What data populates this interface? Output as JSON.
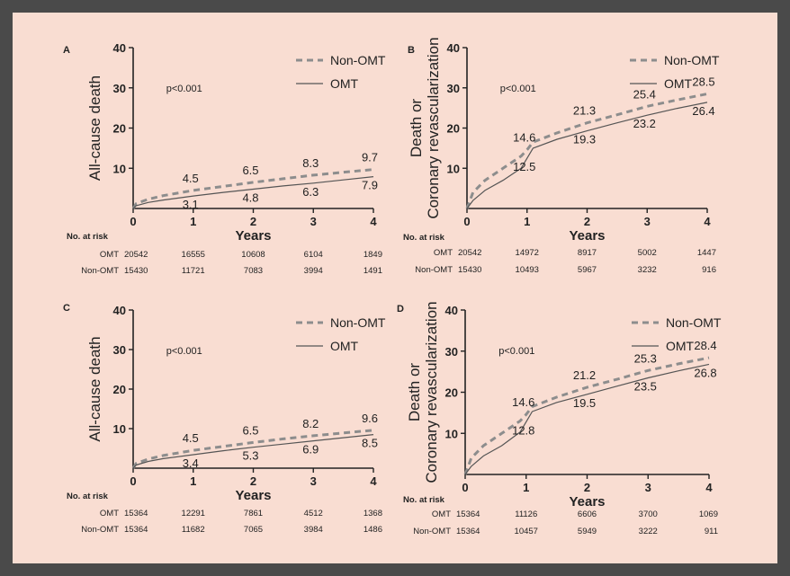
{
  "chart_data": [
    {
      "type": "line",
      "panel": "A",
      "ylabel_lines": [
        "All-cause death"
      ],
      "xlabel": "Years",
      "xlim": [
        0,
        4
      ],
      "ylim": [
        0,
        40
      ],
      "xticks": [
        "0",
        "1",
        "2",
        "3",
        "4"
      ],
      "yticks": [
        "10",
        "20",
        "30",
        "40"
      ],
      "p_value": "p<0.001",
      "legend": {
        "placement": "top-right",
        "entries": [
          "Non-OMT",
          "OMT"
        ]
      },
      "series": [
        {
          "name": "Non-OMT",
          "style": "dashed",
          "x": [
            0,
            0.05,
            0.25,
            0.5,
            1,
            1.5,
            2,
            2.5,
            3,
            3.5,
            4
          ],
          "y": [
            0,
            1.2,
            2.3,
            3.2,
            4.5,
            5.5,
            6.5,
            7.4,
            8.3,
            9.0,
            9.7
          ],
          "labels": [
            {
              "x": 1,
              "text": "4.5"
            },
            {
              "x": 2,
              "text": "6.5"
            },
            {
              "x": 3,
              "text": "8.3"
            },
            {
              "x": 4,
              "text": "9.7"
            }
          ]
        },
        {
          "name": "OMT",
          "style": "solid",
          "x": [
            0,
            0.05,
            0.25,
            0.5,
            1,
            1.5,
            2,
            2.5,
            3,
            3.5,
            4
          ],
          "y": [
            0,
            0.7,
            1.5,
            2.1,
            3.1,
            4.0,
            4.8,
            5.6,
            6.3,
            7.1,
            7.9
          ],
          "labels": [
            {
              "x": 1,
              "text": "3.1"
            },
            {
              "x": 2,
              "text": "4.8"
            },
            {
              "x": 3,
              "text": "6.3"
            },
            {
              "x": 4,
              "text": "7.9"
            }
          ]
        }
      ],
      "risk_table": {
        "title": "No. at risk",
        "rows": [
          {
            "label": "OMT",
            "values": [
              "20542",
              "16555",
              "10608",
              "6104",
              "1849"
            ]
          },
          {
            "label": "Non-OMT",
            "values": [
              "15430",
              "11721",
              "7083",
              "3994",
              "1491"
            ]
          }
        ]
      }
    },
    {
      "type": "line",
      "panel": "B",
      "ylabel_lines": [
        "Death or",
        "Coronary revascularization"
      ],
      "xlabel": "Years",
      "xlim": [
        0,
        4
      ],
      "ylim": [
        0,
        40
      ],
      "xticks": [
        "0",
        "1",
        "2",
        "3",
        "4"
      ],
      "yticks": [
        "10",
        "20",
        "30",
        "40"
      ],
      "p_value": "p<0.001",
      "legend": {
        "placement": "top-right",
        "entries": [
          "Non-OMT",
          "OMT"
        ]
      },
      "series": [
        {
          "name": "Non-OMT",
          "style": "dashed",
          "x": [
            0,
            0.1,
            0.3,
            0.6,
            0.9,
            1,
            1.1,
            1.5,
            2,
            2.5,
            3,
            3.5,
            4
          ],
          "y": [
            0,
            4,
            7,
            10,
            13,
            14.6,
            16.5,
            18.8,
            21.3,
            23.3,
            25.4,
            27.0,
            28.5
          ],
          "labels": [
            {
              "x": 1,
              "text": "14.6"
            },
            {
              "x": 2,
              "text": "21.3"
            },
            {
              "x": 3,
              "text": "25.4"
            },
            {
              "x": 4,
              "text": "28.5"
            }
          ]
        },
        {
          "name": "OMT",
          "style": "solid",
          "x": [
            0,
            0.1,
            0.3,
            0.6,
            0.9,
            1,
            1.1,
            1.5,
            2,
            2.5,
            3,
            3.5,
            4
          ],
          "y": [
            0,
            2,
            4.5,
            7,
            10,
            12.5,
            15,
            17.2,
            19.3,
            21.3,
            23.2,
            24.9,
            26.4
          ],
          "labels": [
            {
              "x": 1,
              "text": "12.5"
            },
            {
              "x": 2,
              "text": "19.3"
            },
            {
              "x": 3,
              "text": "23.2"
            },
            {
              "x": 4,
              "text": "26.4"
            }
          ]
        }
      ],
      "risk_table": {
        "title": "No. at risk",
        "rows": [
          {
            "label": "OMT",
            "values": [
              "20542",
              "14972",
              "8917",
              "5002",
              "1447"
            ]
          },
          {
            "label": "Non-OMT",
            "values": [
              "15430",
              "10493",
              "5967",
              "3232",
              "916"
            ]
          }
        ]
      }
    },
    {
      "type": "line",
      "panel": "C",
      "ylabel_lines": [
        "All-cause death"
      ],
      "xlabel": "Years",
      "xlim": [
        0,
        4
      ],
      "ylim": [
        0,
        40
      ],
      "xticks": [
        "0",
        "1",
        "2",
        "3",
        "4"
      ],
      "yticks": [
        "10",
        "20",
        "30",
        "40"
      ],
      "p_value": "p<0.001",
      "legend": {
        "placement": "top-right",
        "entries": [
          "Non-OMT",
          "OMT"
        ]
      },
      "series": [
        {
          "name": "Non-OMT",
          "style": "dashed",
          "x": [
            0,
            0.05,
            0.25,
            0.5,
            1,
            1.5,
            2,
            2.5,
            3,
            3.5,
            4
          ],
          "y": [
            0,
            1.2,
            2.3,
            3.2,
            4.5,
            5.5,
            6.5,
            7.4,
            8.2,
            8.9,
            9.6
          ],
          "labels": [
            {
              "x": 1,
              "text": "4.5"
            },
            {
              "x": 2,
              "text": "6.5"
            },
            {
              "x": 3,
              "text": "8.2"
            },
            {
              "x": 4,
              "text": "9.6"
            }
          ]
        },
        {
          "name": "OMT",
          "style": "solid",
          "x": [
            0,
            0.05,
            0.25,
            0.5,
            1,
            1.5,
            2,
            2.5,
            3,
            3.5,
            4
          ],
          "y": [
            0,
            0.8,
            1.7,
            2.4,
            3.4,
            4.4,
            5.3,
            6.1,
            6.9,
            7.7,
            8.5
          ],
          "labels": [
            {
              "x": 1,
              "text": "3.4"
            },
            {
              "x": 2,
              "text": "5.3"
            },
            {
              "x": 3,
              "text": "6.9"
            },
            {
              "x": 4,
              "text": "8.5"
            }
          ]
        }
      ],
      "risk_table": {
        "title": "No. at risk",
        "rows": [
          {
            "label": "OMT",
            "values": [
              "15364",
              "12291",
              "7861",
              "4512",
              "1368"
            ]
          },
          {
            "label": "Non-OMT",
            "values": [
              "15364",
              "11682",
              "7065",
              "3984",
              "1486"
            ]
          }
        ]
      }
    },
    {
      "type": "line",
      "panel": "D",
      "ylabel_lines": [
        "Death or",
        "Coronary revascularization"
      ],
      "xlabel": "Years",
      "xlim": [
        0,
        4
      ],
      "ylim": [
        0,
        40
      ],
      "xticks": [
        "0",
        "1",
        "2",
        "3",
        "4"
      ],
      "yticks": [
        "10",
        "20",
        "30",
        "40"
      ],
      "p_value": "p<0.001",
      "legend": {
        "placement": "top-right",
        "entries": [
          "Non-OMT",
          "OMT"
        ]
      },
      "series": [
        {
          "name": "Non-OMT",
          "style": "dashed",
          "x": [
            0,
            0.1,
            0.3,
            0.6,
            0.9,
            1,
            1.1,
            1.5,
            2,
            2.5,
            3,
            3.5,
            4
          ],
          "y": [
            0,
            4,
            7,
            10,
            13,
            14.6,
            16.5,
            18.8,
            21.2,
            23.2,
            25.3,
            26.9,
            28.4
          ],
          "labels": [
            {
              "x": 1,
              "text": "14.6"
            },
            {
              "x": 2,
              "text": "21.2"
            },
            {
              "x": 3,
              "text": "25.3"
            },
            {
              "x": 4,
              "text": "28.4"
            }
          ]
        },
        {
          "name": "OMT",
          "style": "solid",
          "x": [
            0,
            0.1,
            0.3,
            0.6,
            0.9,
            1,
            1.1,
            1.5,
            2,
            2.5,
            3,
            3.5,
            4
          ],
          "y": [
            0,
            2,
            4.5,
            7,
            10.3,
            12.8,
            15.3,
            17.5,
            19.5,
            21.5,
            23.5,
            25.2,
            26.8
          ],
          "labels": [
            {
              "x": 1,
              "text": "12.8"
            },
            {
              "x": 2,
              "text": "19.5"
            },
            {
              "x": 3,
              "text": "23.5"
            },
            {
              "x": 4,
              "text": "26.8"
            }
          ]
        }
      ],
      "risk_table": {
        "title": "No. at risk",
        "rows": [
          {
            "label": "OMT",
            "values": [
              "15364",
              "11126",
              "6606",
              "3700",
              "1069"
            ]
          },
          {
            "label": "Non-OMT",
            "values": [
              "15364",
              "10457",
              "5949",
              "3222",
              "911"
            ]
          }
        ]
      }
    }
  ]
}
